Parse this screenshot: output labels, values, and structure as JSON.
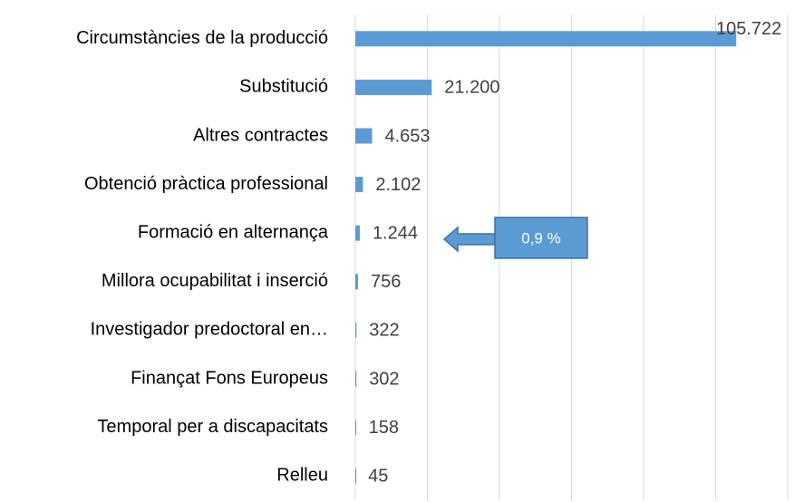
{
  "chart_data": {
    "type": "barh",
    "categories": [
      "Circumstàncies de la producció",
      "Substitució",
      "Altres contractes",
      "Obtenció pràctica professional",
      "Formació en alternança",
      "Millora ocupabilitat i inserció",
      "Investigador predoctoral en…",
      "Finançat Fons Europeus",
      "Temporal per a discapacitats",
      "Relleu"
    ],
    "values": [
      105722,
      21200,
      4653,
      2102,
      1244,
      756,
      322,
      302,
      158,
      45
    ],
    "value_labels": [
      "105.722",
      "21.200",
      "4.653",
      "2.102",
      "1.244",
      "756",
      "322",
      "302",
      "158",
      "45"
    ],
    "color": "#5b9bd5",
    "xlim": [
      0,
      120000
    ],
    "xticks": [
      0,
      20000,
      40000,
      60000,
      80000,
      100000,
      120000
    ],
    "grid": true,
    "annotation": "0,9 %"
  }
}
